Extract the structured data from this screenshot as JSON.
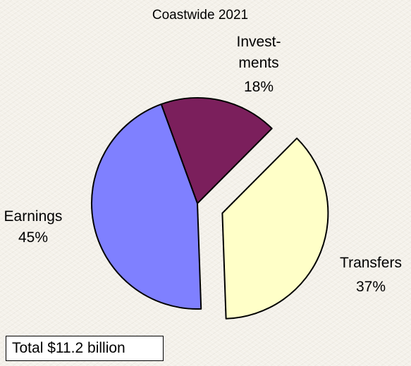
{
  "chart_data": {
    "type": "pie",
    "title": "Coastwide 2021",
    "slices": [
      {
        "name": "Investments",
        "label_lines": [
          "Invest-",
          "ments"
        ],
        "pct_label": "18%",
        "value": 18,
        "color": "#7b1f5c",
        "exploded": false
      },
      {
        "name": "Transfers",
        "label_lines": [
          "Transfers"
        ],
        "pct_label": "37%",
        "value": 37,
        "color": "#ffffc8",
        "exploded": true
      },
      {
        "name": "Earnings",
        "label_lines": [
          "Earnings"
        ],
        "pct_label": "45%",
        "value": 45,
        "color": "#7f80ff",
        "exploded": false
      }
    ],
    "note": "Total $11.2 billion"
  }
}
